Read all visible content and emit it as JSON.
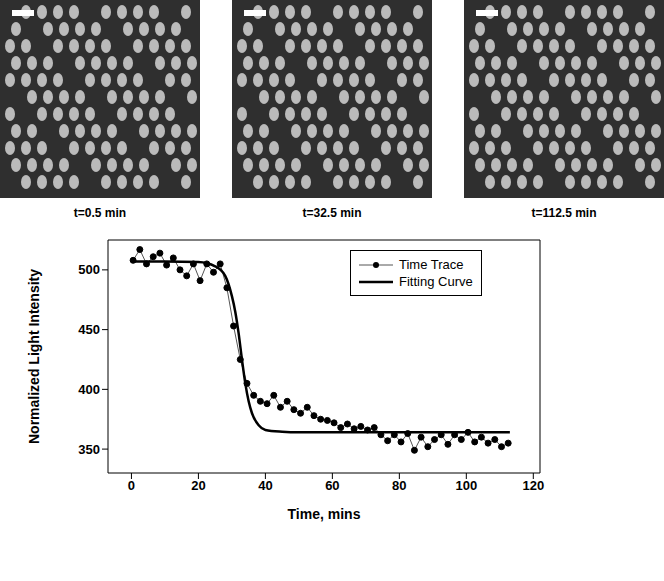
{
  "images": [
    {
      "label": "t=0.5 min"
    },
    {
      "label": "t=32.5 min"
    },
    {
      "label": "t=112.5 min"
    }
  ],
  "chart_data": {
    "type": "line",
    "x_label": "Time, mins",
    "y_label": "Normalized Light Intensity",
    "xlim": [
      -7,
      122
    ],
    "xticks": [
      0,
      20,
      40,
      60,
      80,
      100,
      120
    ],
    "ylim": [
      330,
      525
    ],
    "yticks": [
      350,
      400,
      450,
      500
    ],
    "legend": "upper right",
    "grid": false,
    "series": [
      {
        "name": "Time Trace",
        "color": "#555555",
        "marker": "circle",
        "line_style": "solid",
        "x": [
          0.5,
          2.5,
          4.5,
          6.5,
          8.5,
          10.5,
          12.5,
          14.5,
          16.5,
          18.5,
          20.5,
          22.5,
          24.5,
          26.5,
          28.5,
          30.5,
          32.5,
          34.5,
          36.5,
          38.5,
          40.5,
          42.5,
          44.5,
          46.5,
          48.5,
          50.5,
          52.5,
          54.5,
          56.5,
          58.5,
          60.5,
          62.5,
          64.5,
          66.5,
          68.5,
          70.5,
          72.5,
          74.5,
          76.5,
          78.5,
          80.5,
          82.5,
          84.5,
          86.5,
          88.5,
          90.5,
          92.5,
          94.5,
          96.5,
          98.5,
          100.5,
          102.5,
          104.5,
          106.5,
          108.5,
          110.5,
          112.5
        ],
        "values": [
          508,
          517,
          505,
          511,
          514,
          504,
          510,
          500,
          495,
          505,
          491,
          505,
          498,
          505,
          485,
          453,
          425,
          405,
          395,
          390,
          388,
          395,
          385,
          390,
          383,
          380,
          385,
          378,
          375,
          374,
          372,
          368,
          371,
          367,
          369,
          366,
          368,
          362,
          357,
          362,
          356,
          363,
          349,
          360,
          352,
          358,
          362,
          354,
          362,
          358,
          364,
          356,
          360,
          355,
          358,
          352,
          355
        ]
      },
      {
        "name": "Fitting Curve",
        "color": "#000000",
        "marker": "none",
        "line_style": "solid",
        "x": [
          0,
          10,
          20,
          25,
          28,
          30,
          31,
          32,
          33,
          34,
          35,
          36,
          38,
          40,
          45,
          50,
          60,
          80,
          100,
          113
        ],
        "values": [
          507,
          507,
          506.5,
          503,
          495,
          478,
          465,
          447,
          425,
          405,
          390,
          380,
          370,
          366,
          364.5,
          364,
          364,
          364,
          364,
          364
        ]
      }
    ]
  }
}
